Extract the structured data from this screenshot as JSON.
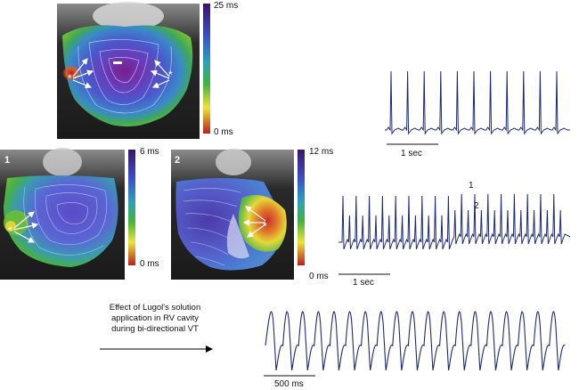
{
  "maps": {
    "top": {
      "max_label": "25 ms",
      "min_label": "0 ms"
    },
    "map1": {
      "number": "1",
      "max_label": "6 ms",
      "min_label": "0 ms"
    },
    "map2": {
      "number": "2",
      "max_label": "12 ms",
      "min_label": "0 ms"
    }
  },
  "traces": {
    "top_scale": "1 sec",
    "middle_scale": "1 sec",
    "middle_label_1": "1",
    "middle_label_2": "2",
    "bottom_scale": "500 ms"
  },
  "caption": {
    "line1": "Effect of Lugol's solution",
    "line2": "application in RV cavity",
    "line3": "during bi-directional VT"
  },
  "colors": {
    "trace": "#1f2a7a",
    "colorbar": [
      "#3b1470",
      "#3a52c9",
      "#2aa2b8",
      "#3cae3c",
      "#e9e13a",
      "#c63a1e"
    ]
  }
}
